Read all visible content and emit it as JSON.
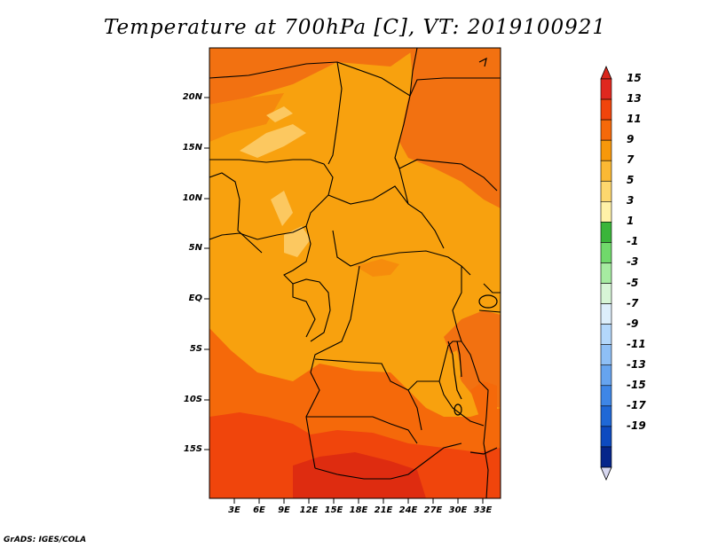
{
  "title": "Temperature at 700hPa [C], VT: 2019100921",
  "footer": "GrADS: IGES/COLA",
  "lat_labels": [
    "20N",
    "15N",
    "10N",
    "5N",
    "EQ",
    "5S",
    "10S",
    "15S"
  ],
  "lon_labels": [
    "3E",
    "6E",
    "9E",
    "12E",
    "15E",
    "18E",
    "21E",
    "24E",
    "27E",
    "30E",
    "33E"
  ],
  "colorbar": {
    "labels": [
      "15",
      "13",
      "11",
      "9",
      "7",
      "5",
      "3",
      "1",
      "-1",
      "-3",
      "-5",
      "-7",
      "-9",
      "-11",
      "-13",
      "-15",
      "-17",
      "-19"
    ],
    "colors": [
      "#e0281f",
      "#f0450c",
      "#f5690a",
      "#f7980b",
      "#fbb934",
      "#fdd76e",
      "#fff1a8",
      "#3ab53a",
      "#70d96b",
      "#a6eba1",
      "#d7f5d6",
      "#ddeefb",
      "#b3d7fb",
      "#8ebff6",
      "#66a4ef",
      "#3e86e6",
      "#1f68d6",
      "#0d4ac0",
      "#06258a"
    ],
    "top_cap_color": "#d9261c",
    "bottom_cap_color": "#d8d8f0"
  }
}
